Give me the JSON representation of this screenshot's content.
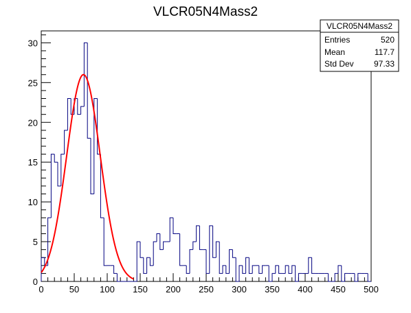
{
  "chart_data": {
    "type": "histogram",
    "title": "VLCR05N4Mass2",
    "xlabel": "",
    "ylabel": "",
    "xlim": [
      0,
      500
    ],
    "ylim": [
      0,
      31.5
    ],
    "x_ticks": [
      0,
      50,
      100,
      150,
      200,
      250,
      300,
      350,
      400,
      450,
      500
    ],
    "y_ticks": [
      0,
      5,
      10,
      15,
      20,
      25,
      30
    ],
    "bin_width": 5,
    "bins_start": 0,
    "counts": [
      3,
      2,
      8,
      16,
      15,
      12,
      16,
      19,
      23,
      21,
      23,
      21,
      22,
      30,
      18,
      11,
      23,
      16,
      8,
      2,
      2,
      2,
      1,
      0,
      0,
      0,
      0,
      0,
      0,
      5,
      3,
      1,
      3,
      2,
      5,
      6,
      4,
      5,
      5,
      8,
      6,
      6,
      2,
      2,
      1,
      4,
      5,
      7,
      4,
      4,
      1,
      7,
      3,
      5,
      1,
      2,
      1,
      4,
      3,
      0,
      2,
      1,
      3,
      1,
      2,
      2,
      1,
      2,
      2,
      0,
      1,
      2,
      1,
      1,
      2,
      1,
      2,
      0,
      1,
      1,
      1,
      3,
      1,
      1,
      1,
      1,
      1,
      0,
      0,
      1,
      2,
      0,
      1,
      1,
      1,
      0,
      1,
      1,
      1,
      0
    ],
    "histogram_color": "#000080",
    "fit": {
      "type": "gaussian",
      "color": "#ff0000",
      "constant": 26,
      "mean": 64,
      "sigma": 25.5,
      "x_range": [
        0,
        140
      ]
    },
    "stats_box": {
      "name": "VLCR05N4Mass2",
      "rows": [
        {
          "label": "Entries",
          "value": "520"
        },
        {
          "label": "Mean",
          "value": "117.7"
        },
        {
          "label": "Std Dev",
          "value": "97.33"
        }
      ]
    }
  }
}
